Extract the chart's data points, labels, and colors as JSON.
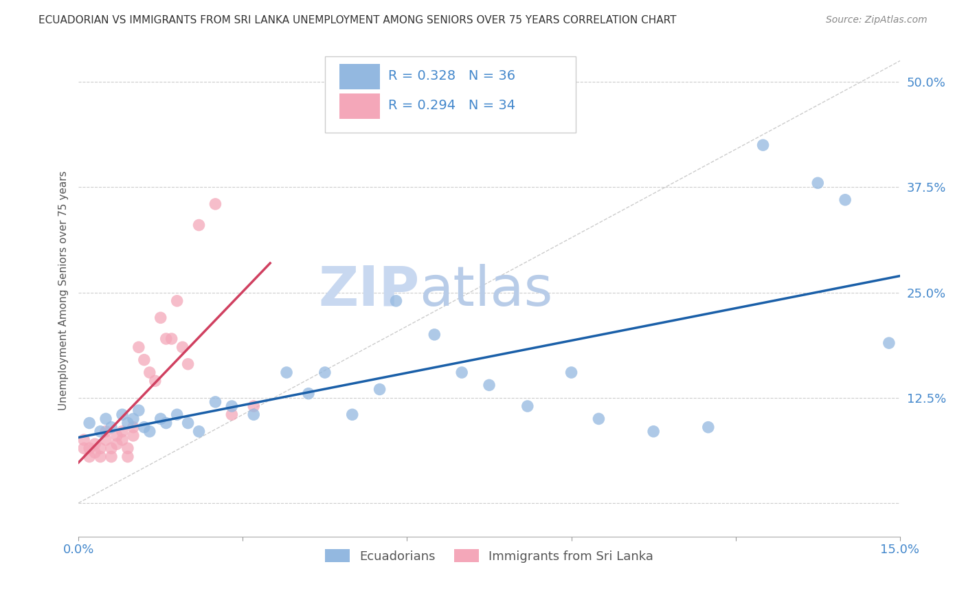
{
  "title": "ECUADORIAN VS IMMIGRANTS FROM SRI LANKA UNEMPLOYMENT AMONG SENIORS OVER 75 YEARS CORRELATION CHART",
  "source": "Source: ZipAtlas.com",
  "xlabel_blue": "Ecuadorians",
  "xlabel_pink": "Immigrants from Sri Lanka",
  "ylabel": "Unemployment Among Seniors over 75 years",
  "R_blue": 0.328,
  "N_blue": 36,
  "R_pink": 0.294,
  "N_pink": 34,
  "xlim": [
    0.0,
    0.15
  ],
  "ylim": [
    -0.04,
    0.545
  ],
  "xtick_vals": [
    0.0,
    0.03,
    0.06,
    0.09,
    0.12,
    0.15
  ],
  "xtick_labels": [
    "0.0%",
    "",
    "",
    "",
    "",
    "15.0%"
  ],
  "ytick_vals": [
    0.0,
    0.125,
    0.25,
    0.375,
    0.5
  ],
  "ytick_labels": [
    "",
    "12.5%",
    "25.0%",
    "37.5%",
    "50.0%"
  ],
  "blue_scatter_x": [
    0.002,
    0.004,
    0.005,
    0.006,
    0.008,
    0.009,
    0.01,
    0.011,
    0.012,
    0.013,
    0.015,
    0.016,
    0.018,
    0.02,
    0.022,
    0.025,
    0.028,
    0.032,
    0.038,
    0.042,
    0.045,
    0.05,
    0.055,
    0.058,
    0.065,
    0.07,
    0.075,
    0.082,
    0.09,
    0.095,
    0.105,
    0.115,
    0.125,
    0.135,
    0.14,
    0.148
  ],
  "blue_scatter_y": [
    0.095,
    0.085,
    0.1,
    0.09,
    0.105,
    0.095,
    0.1,
    0.11,
    0.09,
    0.085,
    0.1,
    0.095,
    0.105,
    0.095,
    0.085,
    0.12,
    0.115,
    0.105,
    0.155,
    0.13,
    0.155,
    0.105,
    0.135,
    0.24,
    0.2,
    0.155,
    0.14,
    0.115,
    0.155,
    0.1,
    0.085,
    0.09,
    0.425,
    0.38,
    0.36,
    0.19
  ],
  "pink_scatter_x": [
    0.001,
    0.001,
    0.002,
    0.002,
    0.003,
    0.003,
    0.004,
    0.004,
    0.005,
    0.005,
    0.006,
    0.006,
    0.007,
    0.007,
    0.008,
    0.008,
    0.009,
    0.009,
    0.01,
    0.01,
    0.011,
    0.012,
    0.013,
    0.014,
    0.015,
    0.016,
    0.017,
    0.018,
    0.019,
    0.02,
    0.022,
    0.025,
    0.028,
    0.032
  ],
  "pink_scatter_y": [
    0.075,
    0.065,
    0.065,
    0.055,
    0.07,
    0.06,
    0.065,
    0.055,
    0.085,
    0.075,
    0.065,
    0.055,
    0.08,
    0.07,
    0.085,
    0.075,
    0.065,
    0.055,
    0.09,
    0.08,
    0.185,
    0.17,
    0.155,
    0.145,
    0.22,
    0.195,
    0.195,
    0.24,
    0.185,
    0.165,
    0.33,
    0.355,
    0.105,
    0.115
  ],
  "blue_color": "#93b8e0",
  "pink_color": "#f4a7b9",
  "blue_line_color": "#1a5fa8",
  "pink_line_color": "#d04060",
  "background_color": "#ffffff",
  "grid_color": "#cccccc",
  "title_color": "#333333",
  "watermark_color": "#d0dff0",
  "watermark_zip": "ZIP",
  "watermark_atlas": "atlas"
}
